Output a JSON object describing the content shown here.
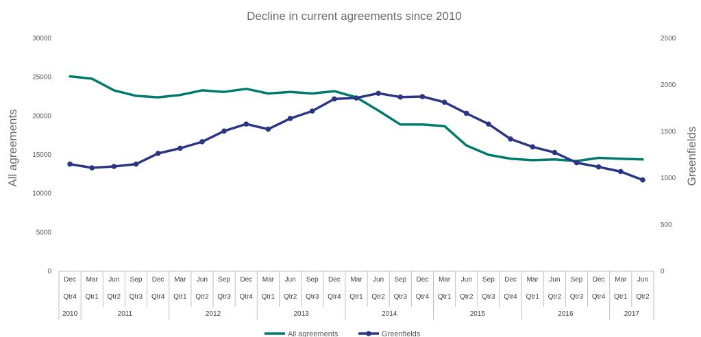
{
  "chart_data": {
    "type": "line",
    "title": "Decline in current agreements since 2010",
    "ylabel_left": "All agreements",
    "ylabel_right": "Greenfields",
    "ylim_left": [
      0,
      30000
    ],
    "yticks_left": [
      0,
      5000,
      10000,
      15000,
      20000,
      25000,
      30000
    ],
    "ylim_right": [
      0,
      2500
    ],
    "yticks_right": [
      0,
      500,
      1000,
      1500,
      2000,
      2500
    ],
    "grid": false,
    "legend_position": "bottom",
    "months": [
      "Dec",
      "Mar",
      "Jun",
      "Sep",
      "Dec",
      "Mar",
      "Jun",
      "Sep",
      "Dec",
      "Mar",
      "Jun",
      "Sep",
      "Dec",
      "Mar",
      "Jun",
      "Sep",
      "Dec",
      "Mar",
      "Jun",
      "Sep",
      "Dec",
      "Mar",
      "Jun",
      "Sep",
      "Dec",
      "Mar",
      "Jun"
    ],
    "quarters": [
      "Qtr4",
      "Qtr1",
      "Qtr2",
      "Qtr3",
      "Qtr4",
      "Qtr1",
      "Qtr2",
      "Qtr3",
      "Qtr4",
      "Qtr1",
      "Qtr2",
      "Qtr3",
      "Qtr4",
      "Qtr1",
      "Qtr2",
      "Qtr3",
      "Qtr4",
      "Qtr1",
      "Qtr2",
      "Qtr3",
      "Qtr4",
      "Qtr1",
      "Qtr2",
      "Qtr3",
      "Qtr4",
      "Qtr1",
      "Qtr2"
    ],
    "years": [
      {
        "label": "2010",
        "span": 1
      },
      {
        "label": "2011",
        "span": 4
      },
      {
        "label": "2012",
        "span": 4
      },
      {
        "label": "2013",
        "span": 4
      },
      {
        "label": "2014",
        "span": 4
      },
      {
        "label": "2015",
        "span": 4
      },
      {
        "label": "2016",
        "span": 4
      },
      {
        "label": "2017",
        "span": 2
      }
    ],
    "series": [
      {
        "name": "All agreements",
        "axis": "left",
        "color": "#007a6e",
        "marker": "none",
        "values": [
          25100,
          24800,
          23300,
          22600,
          22400,
          22700,
          23300,
          23100,
          23500,
          22900,
          23100,
          22900,
          23200,
          22400,
          20700,
          18900,
          18900,
          18700,
          16200,
          15000,
          14500,
          14300,
          14400,
          14200,
          14600,
          14500,
          14400
        ]
      },
      {
        "name": "Greenfields",
        "axis": "right",
        "color": "#2b3586",
        "marker": "circle",
        "values": [
          1150,
          1110,
          1125,
          1150,
          1265,
          1320,
          1390,
          1505,
          1580,
          1525,
          1640,
          1720,
          1850,
          1860,
          1910,
          1870,
          1875,
          1815,
          1695,
          1580,
          1420,
          1335,
          1275,
          1165,
          1120,
          1070,
          980
        ]
      }
    ]
  }
}
